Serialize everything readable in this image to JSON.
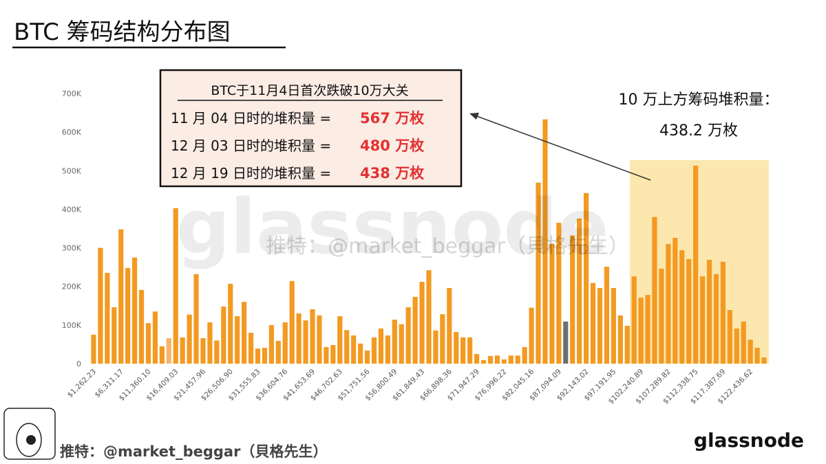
{
  "title": "BTC 筹码结构分布图",
  "chart_data": {
    "type": "bar",
    "categories": [
      "$1,262.23",
      null,
      null,
      null,
      "$6,311.17",
      null,
      null,
      null,
      "$11,360.10",
      null,
      null,
      null,
      "$16,409.03",
      null,
      null,
      null,
      "$21,457.96",
      null,
      null,
      null,
      "$26,506.90",
      null,
      null,
      null,
      "$31,555.83",
      null,
      null,
      null,
      "$36,604.76",
      null,
      null,
      null,
      "$41,653.69",
      null,
      null,
      null,
      "$46,702.63",
      null,
      null,
      null,
      "$51,751.56",
      null,
      null,
      null,
      "$56,800.49",
      null,
      null,
      null,
      "$61,849.43",
      null,
      null,
      null,
      "$66,898.36",
      null,
      null,
      null,
      "$71,947.29",
      null,
      null,
      null,
      "$76,996.22",
      null,
      null,
      null,
      "$82,045.16",
      null,
      null,
      null,
      "$87,094.09",
      null,
      null,
      null,
      "$92,143.02",
      null,
      null,
      null,
      "$97,191.95",
      null,
      null,
      null,
      "$102,240.89",
      null,
      null,
      null,
      "$107,289.82",
      null,
      null,
      null,
      "$112,338.75",
      null,
      null,
      null,
      "$117,387.69",
      null,
      null,
      null,
      "$122,436.62",
      null,
      null
    ],
    "values": [
      75000,
      300000,
      235000,
      146000,
      348000,
      248000,
      275000,
      191000,
      105000,
      135000,
      45000,
      66000,
      403000,
      68000,
      127000,
      232000,
      66000,
      107000,
      60000,
      148000,
      207000,
      123000,
      160000,
      80000,
      39000,
      41000,
      100000,
      59000,
      107000,
      214000,
      130000,
      112000,
      141000,
      125000,
      43000,
      48000,
      123000,
      87000,
      73000,
      52000,
      34000,
      68000,
      91000,
      73000,
      114000,
      102000,
      146000,
      173000,
      212000,
      242000,
      86000,
      128000,
      196000,
      82000,
      68000,
      68000,
      25000,
      9000,
      20000,
      21000,
      11000,
      21000,
      21000,
      43000,
      145000,
      469000,
      633000,
      310000,
      365000,
      109000,
      332000,
      376000,
      442000,
      209000,
      196000,
      251000,
      196000,
      125000,
      98000,
      226000,
      171000,
      178000,
      380000,
      246000,
      310000,
      326000,
      294000,
      271000,
      513000,
      226000,
      269000,
      232000,
      264000,
      139000,
      91000,
      109000,
      62000,
      41000,
      16000
    ],
    "colors": [
      "#f39a22",
      "#f39a22",
      "#f39a22",
      "#f39a22",
      "#f39a22",
      "#f39a22",
      "#f39a22",
      "#f39a22",
      "#f39a22",
      "#f39a22",
      "#f39a22",
      "#f6b469",
      "#f39a22",
      "#f39a22",
      "#f39a22",
      "#f39a22",
      "#f39a22",
      "#f39a22",
      "#f39a22",
      "#f39a22",
      "#f39a22",
      "#f39a22",
      "#f39a22",
      "#f39a22",
      "#f39a22",
      "#f39a22",
      "#f39a22",
      "#f39a22",
      "#f39a22",
      "#f39a22",
      "#f39a22",
      "#f39a22",
      "#f39a22",
      "#f39a22",
      "#f39a22",
      "#f39a22",
      "#f39a22",
      "#f39a22",
      "#f39a22",
      "#f39a22",
      "#f39a22",
      "#f39a22",
      "#f39a22",
      "#f39a22",
      "#f39a22",
      "#f39a22",
      "#f39a22",
      "#f39a22",
      "#f39a22",
      "#f39a22",
      "#f39a22",
      "#f39a22",
      "#f39a22",
      "#f39a22",
      "#f39a22",
      "#f39a22",
      "#f39a22",
      "#f39a22",
      "#f39a22",
      "#f39a22",
      "#f39a22",
      "#f39a22",
      "#f39a22",
      "#f39a22",
      "#f39a22",
      "#f39a22",
      "#f39a22",
      "#f39a22",
      "#f39a22",
      "#6f6f6f",
      "#f39a22",
      "#f39a22",
      "#f39a22",
      "#f39a22",
      "#f39a22",
      "#f39a22",
      "#f39a22",
      "#f39a22",
      "#f39a22",
      "#f39a22",
      "#f39a22",
      "#f39a22",
      "#f39a22",
      "#f39a22",
      "#f39a22",
      "#f39a22",
      "#f39a22",
      "#f39a22",
      "#f39a22",
      "#f39a22",
      "#f39a22",
      "#f39a22",
      "#f39a22",
      "#f39a22",
      "#f39a22",
      "#f39a22",
      "#f39a22",
      "#f39a22",
      "#f39a22"
    ],
    "ylim": [
      0,
      700000
    ],
    "yticks": [
      0,
      {
        "value": 100000,
        "label": "100K"
      },
      {
        "value": 200000,
        "label": "200K"
      },
      {
        "value": 300000,
        "label": "300K"
      },
      {
        "value": 400000,
        "label": "400K"
      },
      {
        "value": 500000,
        "label": "500K"
      },
      {
        "value": 600000,
        "label": "600K"
      },
      {
        "value": 700000,
        "label": "700K"
      }
    ],
    "grid": false
  },
  "callout": {
    "heading": "BTC于11月4日首次跌破10万大关",
    "rows": [
      {
        "label": "11 月 04 日时的堆积量 =",
        "amount": "567 万枚"
      },
      {
        "label": "12 月 03 日时的堆积量 =",
        "amount": "480 万枚"
      },
      {
        "label": "12 月 19 日时的堆积量 =",
        "amount": "438 万枚"
      }
    ]
  },
  "side_note": {
    "line1": "10 万上方筹码堆积量：",
    "line2": "438.2 万枚"
  },
  "watermark": {
    "brand": "glassnode",
    "handle": "推特：@market_beggar（貝格先生）"
  },
  "footer": {
    "handle": "推特：@market_beggar（貝格先生）",
    "logo": "glassnode"
  }
}
